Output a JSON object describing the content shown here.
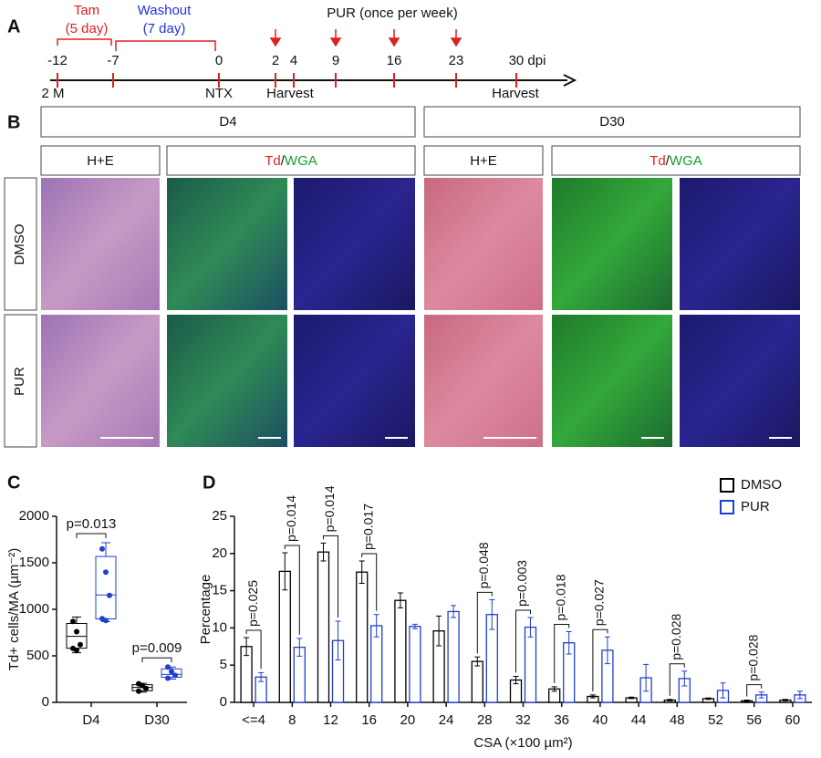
{
  "panel_a": {
    "label": "A",
    "tam": "Tam",
    "tam_duration": "(5 day)",
    "washout": "Washout",
    "washout_duration": "(7 day)",
    "pur_schedule": "PUR (once per week)",
    "ticks": [
      "-12",
      "-7",
      "0",
      "2",
      "4",
      "9",
      "16",
      "23",
      "30 dpi"
    ],
    "events": [
      "2 M",
      "NTX",
      "Harvest",
      "Harvest"
    ]
  },
  "panel_b": {
    "label": "B",
    "timepoints": [
      "D4",
      "D30"
    ],
    "stain_he": "H+E",
    "stain_td": "Td",
    "stain_sep": "/",
    "stain_wga": "WGA",
    "treatments": [
      "DMSO",
      "PUR"
    ]
  },
  "chart_data": [
    {
      "type": "box",
      "panel_label": "C",
      "y_label": "Td+ cells/MA (µm⁻²)",
      "categories": [
        "D4",
        "D30"
      ],
      "ylim": [
        0,
        2000
      ],
      "yticks": [
        0,
        500,
        1000,
        1500,
        2000
      ],
      "series": [
        {
          "color": "#000000",
          "min": [
            533,
            110
          ],
          "q1": [
            582,
            125
          ],
          "median": [
            710,
            160
          ],
          "q3": [
            848,
            190
          ],
          "max": [
            917,
            205
          ],
          "points": [
            [
              870,
              760,
              620,
              580,
              560
            ],
            [
              200,
              180,
              150,
              120
            ]
          ]
        },
        {
          "color": "#1f3fd1",
          "min": [
            868,
            250
          ],
          "q1": [
            897,
            270
          ],
          "median": [
            1154,
            300
          ],
          "q3": [
            1568,
            360
          ],
          "max": [
            1716,
            380
          ],
          "points": [
            [
              1650,
              1400,
              1150,
              900,
              880
            ],
            [
              380,
              330,
              290,
              260
            ]
          ]
        }
      ],
      "annotations": [
        {
          "text": "p=0.013",
          "category": "D4"
        },
        {
          "text": "p=0.009",
          "category": "D30"
        }
      ]
    },
    {
      "type": "bar",
      "panel_label": "D",
      "y_label": "Percentage",
      "x_label": "CSA (×100 µm²)",
      "categories": [
        "<=4",
        "8",
        "12",
        "16",
        "20",
        "24",
        "28",
        "32",
        "36",
        "40",
        "44",
        "48",
        "52",
        "56",
        "60"
      ],
      "ylim": [
        0,
        25
      ],
      "yticks": [
        0,
        5,
        10,
        15,
        20,
        25
      ],
      "legend": "top-right",
      "series": [
        {
          "name": "DMSO",
          "color": "#000000",
          "values": [
            7.5,
            17.6,
            20.2,
            17.5,
            13.7,
            9.6,
            5.5,
            3.0,
            1.8,
            0.8,
            0.6,
            0.3,
            0.5,
            0.2,
            0.3
          ],
          "errors": [
            1.2,
            2.5,
            1.2,
            1.5,
            1.0,
            2.0,
            0.6,
            0.5,
            0.3,
            0.2,
            0.1,
            0.1,
            0.1,
            0.1,
            0.1
          ]
        },
        {
          "name": "PUR",
          "color": "#1f3fd1",
          "values": [
            3.4,
            7.4,
            8.3,
            10.3,
            10.2,
            12.2,
            11.8,
            10.1,
            8.0,
            7.0,
            3.3,
            3.2,
            1.6,
            1.0,
            1.0
          ],
          "errors": [
            0.6,
            1.2,
            2.6,
            1.5,
            0.3,
            0.8,
            2.0,
            1.3,
            1.5,
            1.8,
            1.8,
            1.0,
            1.0,
            0.4,
            0.5
          ]
        }
      ],
      "annotations": [
        {
          "text": "p=0.025",
          "category": "<=4"
        },
        {
          "text": "p=0.014",
          "category": "8"
        },
        {
          "text": "p=0.014",
          "category": "12"
        },
        {
          "text": "p=0.017",
          "category": "16"
        },
        {
          "text": "p=0.048",
          "category": "28"
        },
        {
          "text": "p=0.003",
          "category": "32"
        },
        {
          "text": "p=0.018",
          "category": "36"
        },
        {
          "text": "p=0.027",
          "category": "40"
        },
        {
          "text": "p=0.028",
          "category": "48"
        },
        {
          "text": "p=0.028",
          "category": "56"
        }
      ]
    }
  ]
}
